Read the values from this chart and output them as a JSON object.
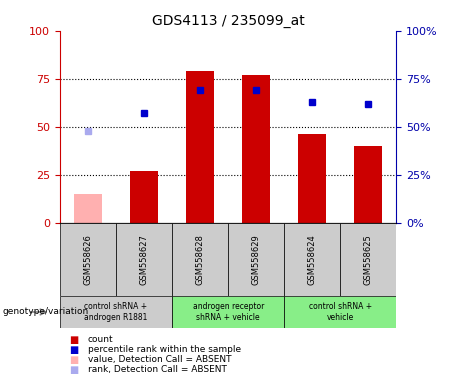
{
  "title": "GDS4113 / 235099_at",
  "samples": [
    "GSM558626",
    "GSM558627",
    "GSM558628",
    "GSM558629",
    "GSM558624",
    "GSM558625"
  ],
  "bar_values": [
    null,
    27,
    79,
    77,
    46,
    40
  ],
  "absent_bar": [
    15,
    null,
    null,
    null,
    null,
    null
  ],
  "dot_values": [
    48,
    57,
    69,
    69,
    63,
    62
  ],
  "dot_absent": [
    true,
    false,
    false,
    false,
    false,
    false
  ],
  "ylim": [
    0,
    100
  ],
  "yticks": [
    0,
    25,
    50,
    75,
    100
  ],
  "bar_color": "#cc0000",
  "absent_bar_color": "#ffb0b0",
  "dot_color": "#0000cc",
  "dot_absent_color": "#aaaaee",
  "left_tick_color": "#cc0000",
  "right_tick_color": "#0000aa",
  "sample_bg_color": "#cccccc",
  "group_info": [
    {
      "cols": [
        0,
        1
      ],
      "label": "control shRNA +\nandrogen R1881",
      "color": "#cccccc"
    },
    {
      "cols": [
        2,
        3
      ],
      "label": "androgen receptor\nshRNA + vehicle",
      "color": "#88ee88"
    },
    {
      "cols": [
        4,
        5
      ],
      "label": "control shRNA +\nvehicle",
      "color": "#88ee88"
    }
  ],
  "legend_colors": [
    "#cc0000",
    "#0000cc",
    "#ffb0b0",
    "#aaaaee"
  ],
  "legend_labels": [
    "count",
    "percentile rank within the sample",
    "value, Detection Call = ABSENT",
    "rank, Detection Call = ABSENT"
  ],
  "genotype_label": "genotype/variation"
}
